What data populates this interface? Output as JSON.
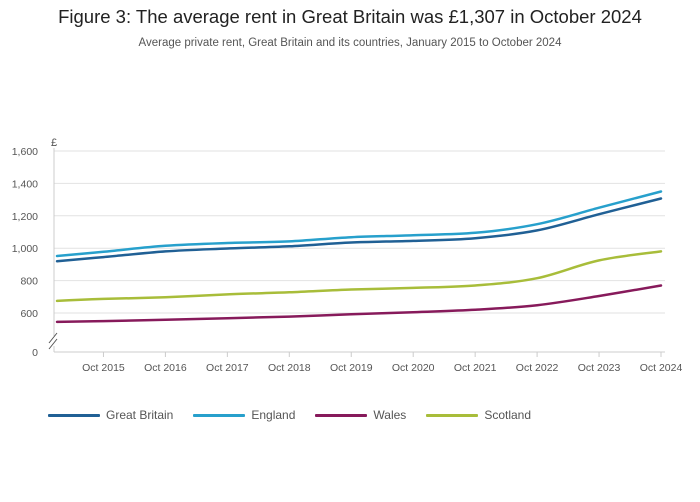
{
  "title": "Figure 3: The average rent in Great Britain was £1,307 in October 2024",
  "subtitle": "Average private rent, Great Britain and its countries, January 2015 to October 2024",
  "chart_data": {
    "type": "line",
    "title": "Figure 3: The average rent in Great Britain was £1,307 in October 2024",
    "subtitle": "Average private rent, Great Britain and its countries, January 2015 to October 2024",
    "ylabel": "£",
    "xlabel": "",
    "ylim": [
      0,
      1600
    ],
    "y_axis_break": true,
    "yticks": [
      "0",
      "600",
      "800",
      "1,000",
      "1,200",
      "1,400",
      "1,600"
    ],
    "xticks": [
      "Oct 2015",
      "Oct 2016",
      "Oct 2017",
      "Oct 2018",
      "Oct 2019",
      "Oct 2020",
      "Oct 2021",
      "Oct 2022",
      "Oct 2023",
      "Oct 2024"
    ],
    "grid": true,
    "legend_position": "bottom-left",
    "x": [
      "Jan 2015",
      "Oct 2015",
      "Oct 2016",
      "Oct 2017",
      "Oct 2018",
      "Oct 2019",
      "Oct 2020",
      "Oct 2021",
      "Oct 2022",
      "Oct 2023",
      "Oct 2024"
    ],
    "series": [
      {
        "name": "Great Britain",
        "color": "#206095",
        "values": [
          920,
          945,
          980,
          998,
          1012,
          1035,
          1045,
          1062,
          1110,
          1210,
          1307
        ]
      },
      {
        "name": "England",
        "color": "#27A0CC",
        "values": [
          952,
          978,
          1015,
          1032,
          1042,
          1068,
          1080,
          1095,
          1148,
          1250,
          1350
        ]
      },
      {
        "name": "Wales",
        "color": "#871A5B",
        "values": [
          545,
          550,
          558,
          568,
          578,
          592,
          605,
          620,
          648,
          705,
          770
        ]
      },
      {
        "name": "Scotland",
        "color": "#A8BD3A",
        "values": [
          675,
          687,
          697,
          715,
          728,
          745,
          755,
          770,
          815,
          925,
          980
        ]
      }
    ]
  }
}
